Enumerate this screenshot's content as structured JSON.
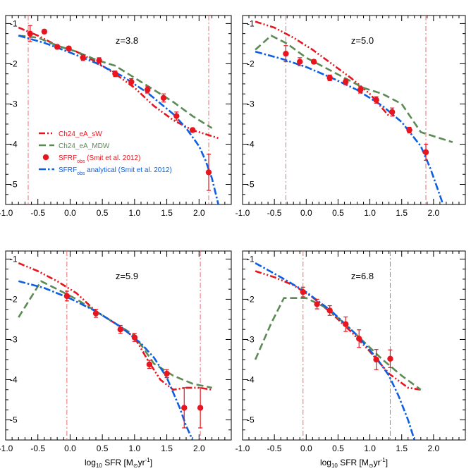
{
  "colors": {
    "ch24_eA_sW": "#e8141e",
    "ch24_eA_MDW": "#5b8a55",
    "sfrf_obs": "#e8141e",
    "sfrf_analytical": "#0d5fe0",
    "vlines": "#e87070"
  },
  "legend": {
    "items": [
      {
        "key": "ch24_eA_sW",
        "text": "Ch24_eA_sW",
        "style": "dash-dot-dot"
      },
      {
        "key": "ch24_eA_MDW",
        "text": "Ch24_eA_MDW",
        "style": "dash"
      },
      {
        "key": "sfrf_obs",
        "text": "SFRF",
        "sub": "obs",
        "rest": " (Smit et al. 2012)",
        "style": "marker"
      },
      {
        "key": "sfrf_analytical",
        "text": "SFRF",
        "sub": "obs",
        "rest": " analytical (Smit et al. 2012)",
        "style": "dash-dot"
      }
    ]
  },
  "xlabel": {
    "main": "log",
    "sub": "10",
    "rest": " SFR [M",
    "odot": "⊙",
    "unit": "yr",
    "sup": "-1",
    "close": "]"
  },
  "chart_data": [
    {
      "type": "line",
      "label": "z=3.8",
      "xlim": [
        -1.0,
        2.5
      ],
      "ylim": [
        -5.5,
        -0.8
      ],
      "xticks": [
        "-1.0",
        "-0.5",
        "0.0",
        "0.5",
        "1.0",
        "1.5",
        "2.0"
      ],
      "yticks": [
        "-1",
        "-2",
        "-3",
        "-4",
        "-5"
      ],
      "vlines": [
        -0.65,
        2.15
      ],
      "series": [
        {
          "key": "ch24_eA_sW",
          "x": [
            -0.8,
            -0.5,
            -0.2,
            0.1,
            0.4,
            0.7,
            1.0,
            1.3,
            1.6,
            1.9,
            2.1,
            2.3
          ],
          "y": [
            -1.1,
            -1.3,
            -1.55,
            -1.7,
            -1.95,
            -2.25,
            -2.6,
            -3.05,
            -3.4,
            -3.65,
            -3.75,
            -3.85
          ]
        },
        {
          "key": "ch24_eA_MDW",
          "x": [
            -0.8,
            -0.5,
            -0.2,
            0.1,
            0.4,
            0.7,
            1.0,
            1.3,
            1.6,
            1.9,
            2.2
          ],
          "y": [
            -1.3,
            -1.35,
            -1.55,
            -1.7,
            -1.9,
            -2.05,
            -2.35,
            -2.65,
            -2.95,
            -3.3,
            -3.6
          ]
        },
        {
          "key": "sfrf_analytical",
          "x": [
            -0.8,
            -0.4,
            0.0,
            0.4,
            0.8,
            1.2,
            1.6,
            1.8,
            2.0,
            2.1,
            2.2,
            2.3
          ],
          "y": [
            -1.3,
            -1.48,
            -1.72,
            -1.98,
            -2.3,
            -2.72,
            -3.25,
            -3.6,
            -4.05,
            -4.4,
            -4.85,
            -5.5
          ]
        }
      ],
      "points": {
        "x": [
          -0.62,
          -0.4,
          -0.2,
          -0.02,
          0.2,
          0.45,
          0.7,
          0.95,
          1.2,
          1.45,
          1.65,
          1.9,
          2.15
        ],
        "y": [
          -1.25,
          -1.2,
          -1.58,
          -1.62,
          -1.85,
          -1.92,
          -2.25,
          -2.45,
          -2.65,
          -2.85,
          -3.3,
          -3.65,
          -4.7
        ],
        "err": [
          0.2,
          0.05,
          0.05,
          0.05,
          0.07,
          0.07,
          0.07,
          0.08,
          0.08,
          0.1,
          0.1,
          0.05,
          0.45
        ]
      }
    },
    {
      "type": "line",
      "label": "z=5.0",
      "xlim": [
        -1.0,
        2.5
      ],
      "ylim": [
        -5.5,
        -0.8
      ],
      "xticks": [
        "-1.0",
        "-0.5",
        "0.0",
        "0.5",
        "1.0",
        "1.5",
        "2.0"
      ],
      "yticks": [
        "-1",
        "-2",
        "-3",
        "-4",
        "-5"
      ],
      "vlines": [
        -0.32,
        1.88
      ],
      "series": [
        {
          "key": "ch24_eA_sW",
          "x": [
            -0.8,
            -0.5,
            -0.2,
            0.1,
            0.4,
            0.7,
            1.0,
            1.3
          ],
          "y": [
            -0.95,
            -1.1,
            -1.35,
            -1.65,
            -2.0,
            -2.35,
            -2.75,
            -3.3
          ]
        },
        {
          "key": "ch24_eA_MDW",
          "x": [
            -0.8,
            -0.55,
            -0.3,
            0.0,
            0.3,
            0.6,
            0.9,
            1.2,
            1.5,
            1.8,
            2.0,
            2.3
          ],
          "y": [
            -1.65,
            -1.3,
            -1.5,
            -1.85,
            -2.1,
            -2.35,
            -2.6,
            -2.75,
            -3.0,
            -3.7,
            -3.8,
            -3.95
          ]
        },
        {
          "key": "sfrf_analytical",
          "x": [
            -0.8,
            -0.4,
            0.0,
            0.4,
            0.8,
            1.2,
            1.5,
            1.8,
            1.95,
            2.05,
            2.15
          ],
          "y": [
            -1.7,
            -1.87,
            -2.08,
            -2.35,
            -2.65,
            -3.05,
            -3.45,
            -4.05,
            -4.6,
            -5.05,
            -5.5
          ]
        }
      ],
      "points": {
        "x": [
          -0.32,
          -0.1,
          0.12,
          0.37,
          0.62,
          0.85,
          1.1,
          1.35,
          1.62,
          1.88
        ],
        "y": [
          -1.75,
          -1.95,
          -1.95,
          -2.35,
          -2.45,
          -2.65,
          -2.9,
          -3.2,
          -3.65,
          -4.2
        ],
        "err": [
          0.2,
          0.1,
          0.05,
          0.07,
          0.07,
          0.08,
          0.08,
          0.1,
          0.07,
          0.2
        ]
      }
    },
    {
      "type": "line",
      "label": "z=5.9",
      "xlim": [
        -1.0,
        2.5
      ],
      "ylim": [
        -5.5,
        -0.8
      ],
      "xticks": [
        "-1.0",
        "-0.5",
        "0.0",
        "0.5",
        "1.0",
        "1.5",
        "2.0"
      ],
      "yticks": [
        "-1",
        "-2",
        "-3",
        "-4",
        "-5"
      ],
      "vlines": [
        -0.05,
        2.02
      ],
      "series": [
        {
          "key": "ch24_eA_sW",
          "x": [
            -0.8,
            -0.5,
            -0.2,
            0.1,
            0.4,
            0.7,
            1.0,
            1.2,
            1.4,
            1.6,
            1.8,
            2.0,
            2.2
          ],
          "y": [
            -1.1,
            -1.3,
            -1.55,
            -1.85,
            -2.3,
            -2.6,
            -2.95,
            -3.5,
            -4.0,
            -4.25,
            -4.2,
            -4.2,
            -4.25
          ]
        },
        {
          "key": "ch24_eA_MDW",
          "x": [
            -0.8,
            -0.45,
            -0.2,
            0.1,
            0.4,
            0.7,
            1.0,
            1.3,
            1.6,
            1.9,
            2.2
          ],
          "y": [
            -2.45,
            -1.55,
            -1.75,
            -2.0,
            -2.3,
            -2.6,
            -2.9,
            -3.6,
            -3.9,
            -4.1,
            -4.2
          ]
        },
        {
          "key": "sfrf_analytical",
          "x": [
            -0.8,
            -0.4,
            0.0,
            0.4,
            0.8,
            1.1,
            1.3,
            1.5,
            1.7,
            1.8,
            1.9
          ],
          "y": [
            -1.55,
            -1.72,
            -1.98,
            -2.3,
            -2.7,
            -3.1,
            -3.45,
            -3.95,
            -4.7,
            -5.15,
            -5.5
          ]
        }
      ],
      "points": {
        "x": [
          -0.05,
          0.4,
          0.78,
          1.0,
          1.23,
          1.5,
          1.77,
          2.02
        ],
        "y": [
          -1.92,
          -2.35,
          -2.75,
          -2.95,
          -3.62,
          -3.85,
          -4.7,
          -4.7
        ],
        "err": [
          0.12,
          0.1,
          0.1,
          0.1,
          0.1,
          0.1,
          0.5,
          0.5
        ]
      }
    },
    {
      "type": "line",
      "label": "z=6.8",
      "xlim": [
        -1.0,
        2.5
      ],
      "ylim": [
        -5.5,
        -0.8
      ],
      "xticks": [
        "-1.0",
        "-0.5",
        "0.0",
        "0.5",
        "1.0",
        "1.5",
        "2.0"
      ],
      "yticks": [
        "-1",
        "-2",
        "-3",
        "-4",
        "-5"
      ],
      "vlines": [
        -0.05,
        1.32
      ],
      "series": [
        {
          "key": "ch24_eA_sW",
          "x": [
            -0.8,
            -0.5,
            -0.2,
            0.1,
            0.4,
            0.7,
            1.0,
            1.3,
            1.6,
            1.8
          ],
          "y": [
            -1.3,
            -1.45,
            -1.65,
            -1.95,
            -2.35,
            -2.8,
            -3.3,
            -3.85,
            -4.2,
            -4.25
          ]
        },
        {
          "key": "ch24_eA_MDW",
          "x": [
            -0.8,
            -0.55,
            -0.35,
            0.0,
            0.3,
            0.6,
            0.9,
            1.2,
            1.5,
            1.8
          ],
          "y": [
            -3.5,
            -2.6,
            -1.97,
            -1.97,
            -2.2,
            -2.6,
            -3.05,
            -3.5,
            -3.9,
            -4.25
          ]
        },
        {
          "key": "sfrf_analytical",
          "x": [
            -0.8,
            -0.4,
            0.0,
            0.4,
            0.8,
            1.1,
            1.3,
            1.45,
            1.6,
            1.7
          ],
          "y": [
            -1.1,
            -1.45,
            -1.82,
            -2.3,
            -2.9,
            -3.45,
            -3.9,
            -4.4,
            -5.0,
            -5.5
          ]
        }
      ],
      "points": {
        "x": [
          -0.05,
          0.17,
          0.37,
          0.62,
          0.83,
          1.1,
          1.32
        ],
        "y": [
          -1.82,
          -2.12,
          -2.28,
          -2.62,
          -2.98,
          -3.5,
          -3.48
        ],
        "err": [
          0.12,
          0.12,
          0.12,
          0.18,
          0.22,
          0.25,
          0.22
        ]
      }
    }
  ]
}
